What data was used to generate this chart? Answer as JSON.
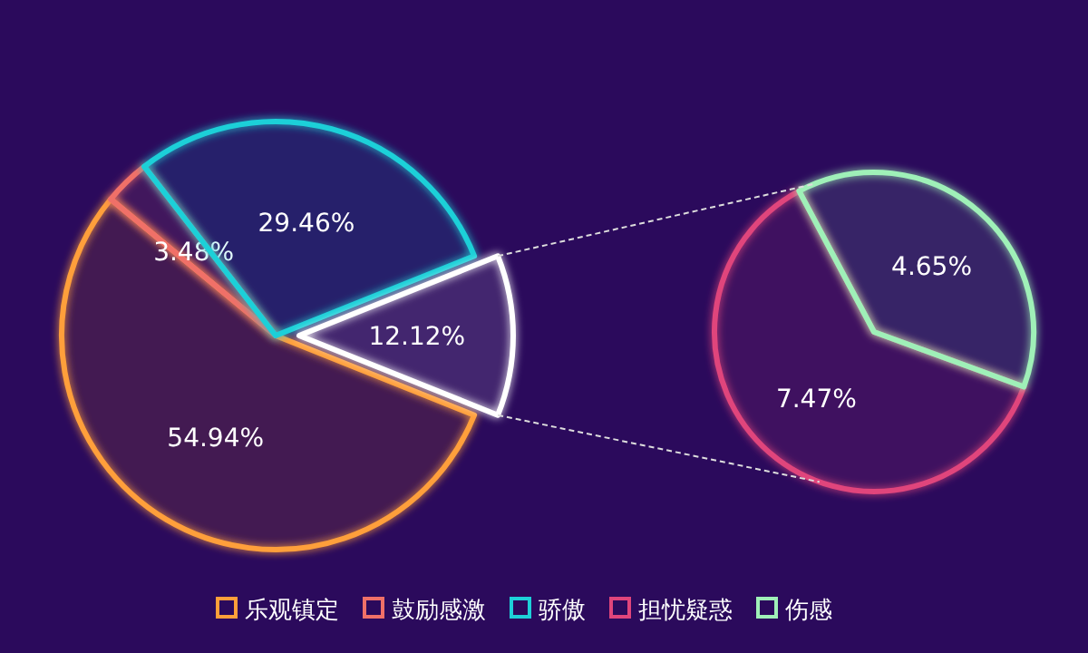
{
  "chart_data": [
    {
      "type": "pie",
      "categories": [
        "乐观镇定",
        "鼓励感激",
        "骄傲",
        null
      ],
      "values": [
        54.94,
        3.48,
        29.46,
        12.12
      ],
      "value_labels": [
        "54.94%",
        "3.48%",
        "29.46%",
        "12.12%"
      ],
      "colors": [
        "#ff9f3a",
        "#f07068",
        "#1ed0d8",
        "#ffffff"
      ],
      "legend": "bottom"
    },
    {
      "type": "pie",
      "categories": [
        "担忧疑惑",
        "伤感"
      ],
      "values": [
        7.47,
        4.65
      ],
      "value_labels": [
        "7.47%",
        "4.65%"
      ],
      "colors": [
        "#e0457b",
        "#9ff0b8"
      ],
      "legend": "bottom"
    }
  ]
}
